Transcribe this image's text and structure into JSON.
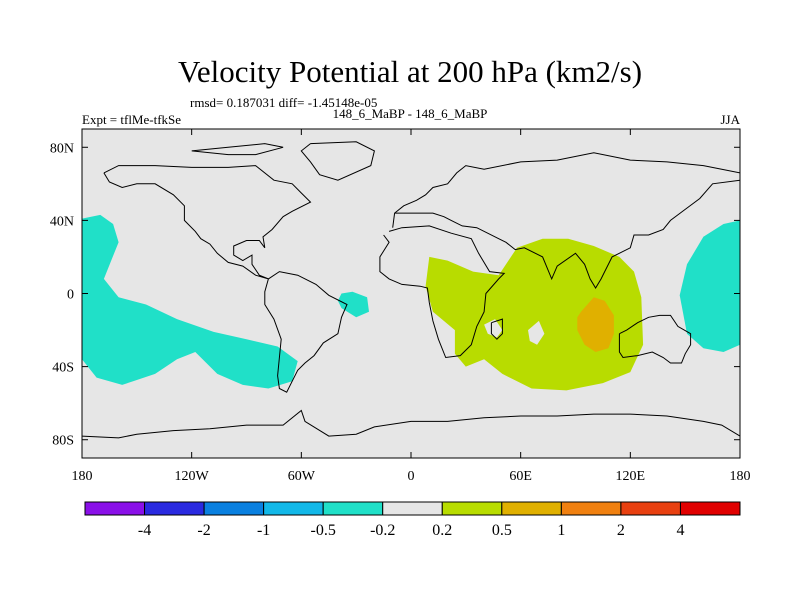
{
  "chart_data": {
    "type": "contour-map",
    "title": "Velocity Potential at 200 hPa (km2/s)",
    "stats_line": "rmsd= 0.187031 diff= -1.45148e-05",
    "left_label": "Expt = tflMe-tfkSe",
    "center_label": "148_6_MaBP - 148_6_MaBP",
    "right_label": "JJA",
    "xlim": [
      -180,
      180
    ],
    "ylim": [
      -90,
      90
    ],
    "x_ticks": [
      {
        "value": -180,
        "label": "180"
      },
      {
        "value": -120,
        "label": "120W"
      },
      {
        "value": -60,
        "label": "60W"
      },
      {
        "value": 0,
        "label": "0"
      },
      {
        "value": 60,
        "label": "60E"
      },
      {
        "value": 120,
        "label": "120E"
      },
      {
        "value": 180,
        "label": "180"
      }
    ],
    "y_ticks": [
      {
        "value": 80,
        "label": "80N"
      },
      {
        "value": 40,
        "label": "40N"
      },
      {
        "value": 0,
        "label": "0"
      },
      {
        "value": -40,
        "label": "40S"
      },
      {
        "value": -80,
        "label": "80S"
      }
    ],
    "colorbar": {
      "colors": [
        "#8a10e8",
        "#2a2ae0",
        "#0a80e0",
        "#12b8e8",
        "#20e0c8",
        "#e6e6e6",
        "#b8dc00",
        "#e0b000",
        "#f08010",
        "#e84010",
        "#e00000"
      ],
      "labels": [
        "-4",
        "-2",
        "-1",
        "-0.5",
        "-0.2",
        "0.2",
        "0.5",
        "1",
        "2",
        "4"
      ]
    },
    "regions": [
      {
        "name": "pacific-negative-region",
        "level": -0.2,
        "color": "#20e0c8",
        "points": [
          [
            -180,
            41
          ],
          [
            -170,
            43
          ],
          [
            -163,
            38
          ],
          [
            -160,
            28
          ],
          [
            -164,
            18
          ],
          [
            -168,
            8
          ],
          [
            -160,
            -2
          ],
          [
            -145,
            -6
          ],
          [
            -128,
            -14
          ],
          [
            -108,
            -21
          ],
          [
            -90,
            -25
          ],
          [
            -73,
            -29
          ],
          [
            -62,
            -37
          ],
          [
            -65,
            -48
          ],
          [
            -78,
            -52
          ],
          [
            -92,
            -50
          ],
          [
            -106,
            -44
          ],
          [
            -118,
            -32
          ],
          [
            -128,
            -36
          ],
          [
            -140,
            -44
          ],
          [
            -158,
            -50
          ],
          [
            -172,
            -46
          ],
          [
            -180,
            -36
          ]
        ]
      },
      {
        "name": "atlantic-negative-patch",
        "level": -0.2,
        "color": "#20e0c8",
        "points": [
          [
            -38,
            0
          ],
          [
            -32,
            1
          ],
          [
            -24,
            -2
          ],
          [
            -23,
            -10
          ],
          [
            -30,
            -13
          ],
          [
            -38,
            -8
          ],
          [
            -40,
            -4
          ]
        ]
      },
      {
        "name": "west-pacific-negative-region",
        "level": -0.2,
        "color": "#20e0c8",
        "points": [
          [
            180,
            40
          ],
          [
            171,
            38
          ],
          [
            160,
            31
          ],
          [
            151,
            16
          ],
          [
            147,
            -1
          ],
          [
            151,
            -22
          ],
          [
            160,
            -30
          ],
          [
            171,
            -32
          ],
          [
            180,
            -28
          ]
        ]
      },
      {
        "name": "indian-ocean-positive-region",
        "level": 0.2,
        "color": "#b8dc00",
        "points": [
          [
            10,
            20
          ],
          [
            20,
            18
          ],
          [
            34,
            12
          ],
          [
            48,
            10
          ],
          [
            58,
            25
          ],
          [
            72,
            30
          ],
          [
            86,
            30
          ],
          [
            100,
            26
          ],
          [
            114,
            20
          ],
          [
            122,
            12
          ],
          [
            126,
            -2
          ],
          [
            127,
            -28
          ],
          [
            120,
            -43
          ],
          [
            105,
            -49
          ],
          [
            85,
            -53
          ],
          [
            66,
            -52
          ],
          [
            50,
            -44
          ],
          [
            40,
            -36
          ],
          [
            30,
            -40
          ],
          [
            24,
            -33
          ],
          [
            24,
            -20
          ],
          [
            12,
            -10
          ],
          [
            8,
            4
          ]
        ]
      },
      {
        "name": "positive-core-region",
        "level": 0.5,
        "color": "#e0b000",
        "points": [
          [
            93,
            -10
          ],
          [
            100,
            -2
          ],
          [
            106,
            -4
          ],
          [
            111,
            -12
          ],
          [
            111,
            -22
          ],
          [
            108,
            -30
          ],
          [
            101,
            -32
          ],
          [
            95,
            -28
          ],
          [
            91,
            -20
          ],
          [
            91,
            -13
          ]
        ]
      }
    ],
    "land_mask_notches": [
      {
        "name": "arabian-notch",
        "color": "#e6e6e6",
        "points": [
          [
            40,
            -17
          ],
          [
            46,
            -14
          ],
          [
            50,
            -20
          ],
          [
            47,
            -24
          ],
          [
            42,
            -22
          ]
        ]
      },
      {
        "name": "madagascar-notch",
        "color": "#e6e6e6",
        "points": [
          [
            64,
            -20
          ],
          [
            70,
            -15
          ],
          [
            73,
            -22
          ],
          [
            69,
            -28
          ],
          [
            65,
            -26
          ]
        ]
      }
    ],
    "coastlines": [
      {
        "name": "africa-coastline",
        "points": [
          [
            -15,
            32
          ],
          [
            -12,
            28
          ],
          [
            -17,
            20
          ],
          [
            -17,
            12
          ],
          [
            -12,
            8
          ],
          [
            -5,
            5
          ],
          [
            5,
            4
          ],
          [
            9,
            3
          ],
          [
            10,
            -5
          ],
          [
            12,
            -15
          ],
          [
            15,
            -25
          ],
          [
            19,
            -35
          ],
          [
            27,
            -34
          ],
          [
            33,
            -28
          ],
          [
            36,
            -18
          ],
          [
            40,
            -10
          ],
          [
            41,
            0
          ],
          [
            48,
            8
          ],
          [
            51,
            11
          ],
          [
            43,
            12
          ],
          [
            37,
            22
          ],
          [
            33,
            30
          ],
          [
            22,
            33
          ],
          [
            10,
            37
          ],
          [
            -5,
            36
          ],
          [
            -12,
            34
          ]
        ]
      },
      {
        "name": "eurasia-coastline",
        "points": [
          [
            -10,
            36
          ],
          [
            -9,
            44
          ],
          [
            -4,
            48
          ],
          [
            3,
            51
          ],
          [
            8,
            54
          ],
          [
            12,
            58
          ],
          [
            20,
            60
          ],
          [
            25,
            66
          ],
          [
            30,
            70
          ],
          [
            40,
            68
          ],
          [
            60,
            72
          ],
          [
            80,
            73
          ],
          [
            100,
            77
          ],
          [
            120,
            73
          ],
          [
            140,
            72
          ],
          [
            160,
            70
          ],
          [
            170,
            68
          ],
          [
            180,
            66
          ]
        ]
      },
      {
        "name": "asia-south-coastline",
        "points": [
          [
            180,
            62
          ],
          [
            165,
            60
          ],
          [
            158,
            52
          ],
          [
            150,
            46
          ],
          [
            142,
            40
          ],
          [
            138,
            35
          ],
          [
            130,
            32
          ],
          [
            122,
            32
          ],
          [
            120,
            25
          ],
          [
            110,
            20
          ],
          [
            106,
            12
          ],
          [
            104,
            8
          ],
          [
            101,
            3
          ],
          [
            98,
            8
          ],
          [
            95,
            16
          ],
          [
            90,
            22
          ],
          [
            80,
            15
          ],
          [
            77,
            8
          ],
          [
            72,
            20
          ],
          [
            62,
            25
          ],
          [
            57,
            24
          ],
          [
            52,
            28
          ],
          [
            48,
            30
          ],
          [
            36,
            36
          ],
          [
            28,
            37
          ],
          [
            22,
            40
          ],
          [
            18,
            42
          ],
          [
            12,
            44
          ],
          [
            8,
            44
          ],
          [
            0,
            44
          ],
          [
            -9,
            44
          ]
        ]
      },
      {
        "name": "north-america-coastline",
        "points": [
          [
            -168,
            66
          ],
          [
            -160,
            70
          ],
          [
            -140,
            70
          ],
          [
            -120,
            69
          ],
          [
            -100,
            69
          ],
          [
            -85,
            70
          ],
          [
            -75,
            62
          ],
          [
            -65,
            60
          ],
          [
            -60,
            55
          ],
          [
            -55,
            50
          ],
          [
            -65,
            45
          ],
          [
            -70,
            42
          ],
          [
            -76,
            35
          ],
          [
            -81,
            31
          ],
          [
            -80,
            25
          ],
          [
            -83,
            29
          ],
          [
            -90,
            29
          ],
          [
            -97,
            26
          ],
          [
            -97,
            21
          ],
          [
            -92,
            18
          ],
          [
            -87,
            21
          ],
          [
            -87,
            16
          ],
          [
            -83,
            10
          ],
          [
            -78,
            8
          ],
          [
            -85,
            10
          ],
          [
            -92,
            15
          ],
          [
            -100,
            17
          ],
          [
            -106,
            22
          ],
          [
            -110,
            27
          ],
          [
            -115,
            30
          ],
          [
            -118,
            34
          ],
          [
            -124,
            40
          ],
          [
            -124,
            48
          ],
          [
            -130,
            54
          ],
          [
            -140,
            60
          ],
          [
            -150,
            60
          ],
          [
            -158,
            58
          ],
          [
            -165,
            61
          ],
          [
            -168,
            66
          ]
        ]
      },
      {
        "name": "south-america-coastline",
        "points": [
          [
            -78,
            8
          ],
          [
            -72,
            12
          ],
          [
            -62,
            10
          ],
          [
            -52,
            5
          ],
          [
            -45,
            -1
          ],
          [
            -35,
            -6
          ],
          [
            -38,
            -13
          ],
          [
            -40,
            -22
          ],
          [
            -48,
            -27
          ],
          [
            -53,
            -34
          ],
          [
            -58,
            -38
          ],
          [
            -62,
            -42
          ],
          [
            -65,
            -48
          ],
          [
            -68,
            -54
          ],
          [
            -72,
            -52
          ],
          [
            -73,
            -45
          ],
          [
            -72,
            -35
          ],
          [
            -71,
            -25
          ],
          [
            -75,
            -14
          ],
          [
            -80,
            -6
          ],
          [
            -80,
            1
          ],
          [
            -78,
            8
          ]
        ]
      },
      {
        "name": "greenland-coastline",
        "points": [
          [
            -55,
            82
          ],
          [
            -30,
            83
          ],
          [
            -20,
            78
          ],
          [
            -22,
            70
          ],
          [
            -40,
            62
          ],
          [
            -50,
            65
          ],
          [
            -55,
            72
          ],
          [
            -60,
            78
          ],
          [
            -55,
            82
          ]
        ]
      },
      {
        "name": "australia-coastline",
        "points": [
          [
            114,
            -22
          ],
          [
            114,
            -32
          ],
          [
            116,
            -35
          ],
          [
            124,
            -34
          ],
          [
            132,
            -32
          ],
          [
            138,
            -35
          ],
          [
            142,
            -38
          ],
          [
            148,
            -38
          ],
          [
            150,
            -33
          ],
          [
            153,
            -28
          ],
          [
            153,
            -22
          ],
          [
            146,
            -18
          ],
          [
            142,
            -12
          ],
          [
            136,
            -12
          ],
          [
            130,
            -13
          ],
          [
            124,
            -16
          ],
          [
            118,
            -20
          ],
          [
            114,
            -22
          ]
        ]
      },
      {
        "name": "antarctica-coastline",
        "points": [
          [
            -180,
            -78
          ],
          [
            -160,
            -79
          ],
          [
            -150,
            -77
          ],
          [
            -130,
            -75
          ],
          [
            -110,
            -74
          ],
          [
            -90,
            -72
          ],
          [
            -70,
            -72
          ],
          [
            -60,
            -64
          ],
          [
            -58,
            -70
          ],
          [
            -45,
            -78
          ],
          [
            -30,
            -77
          ],
          [
            -20,
            -73
          ],
          [
            0,
            -70
          ],
          [
            20,
            -70
          ],
          [
            40,
            -68
          ],
          [
            60,
            -67
          ],
          [
            80,
            -67
          ],
          [
            100,
            -66
          ],
          [
            120,
            -66
          ],
          [
            140,
            -67
          ],
          [
            160,
            -70
          ],
          [
            170,
            -72
          ],
          [
            180,
            -78
          ]
        ]
      },
      {
        "name": "madagascar-coastline",
        "points": [
          [
            44,
            -16
          ],
          [
            50,
            -14
          ],
          [
            50,
            -22
          ],
          [
            47,
            -25
          ],
          [
            44,
            -22
          ],
          [
            44,
            -16
          ]
        ]
      },
      {
        "name": "arctic-islands-coastline",
        "points": [
          [
            -120,
            78
          ],
          [
            -100,
            80
          ],
          [
            -80,
            82
          ],
          [
            -70,
            80
          ],
          [
            -85,
            76
          ],
          [
            -100,
            76
          ],
          [
            -120,
            78
          ]
        ]
      }
    ]
  }
}
